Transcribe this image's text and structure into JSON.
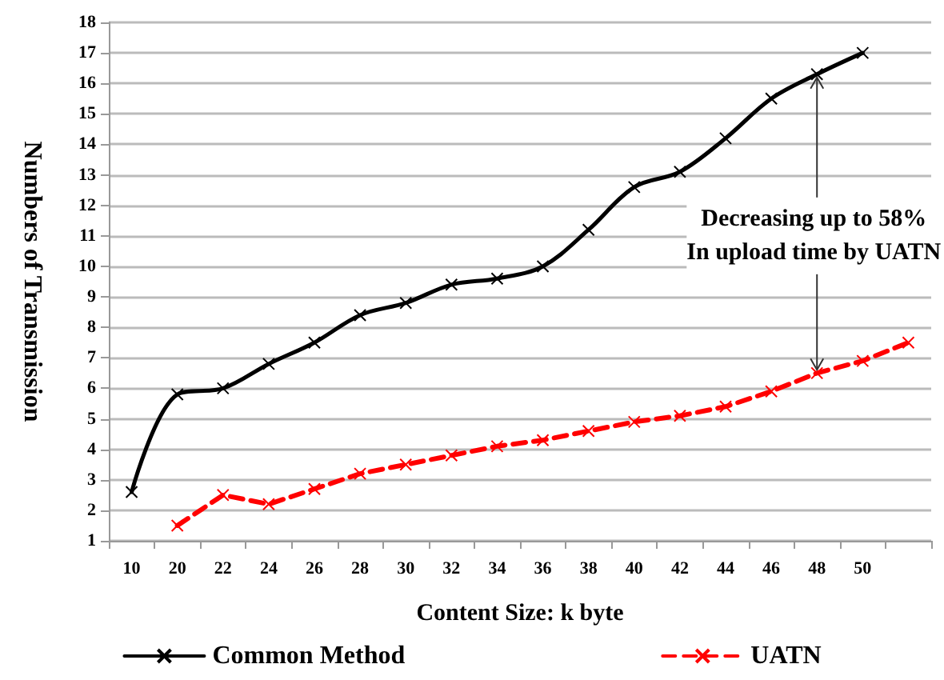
{
  "chart_data": {
    "type": "line",
    "xlabel": "Content Size: k byte",
    "ylabel": "Numbers of Transmission",
    "categories": [
      "10",
      "20",
      "22",
      "24",
      "26",
      "28",
      "30",
      "32",
      "34",
      "36",
      "38",
      "40",
      "42",
      "44",
      "46",
      "48",
      "50",
      null
    ],
    "series": [
      {
        "name": "Common Method",
        "color": "#000000",
        "line_style": "solid",
        "values": [
          2.6,
          5.8,
          6.0,
          6.8,
          7.5,
          8.4,
          8.8,
          9.4,
          9.6,
          10.0,
          11.2,
          12.6,
          13.1,
          14.2,
          15.5,
          16.3,
          17.0,
          null
        ]
      },
      {
        "name": "UATN",
        "color": "#ff0000",
        "line_style": "dashed",
        "values": [
          null,
          1.5,
          2.5,
          2.2,
          2.7,
          3.2,
          3.5,
          3.8,
          4.1,
          4.3,
          4.6,
          4.9,
          5.1,
          5.4,
          5.9,
          6.5,
          6.9,
          7.5
        ]
      }
    ],
    "ylim": [
      1,
      18
    ],
    "yticks": [
      1,
      2,
      3,
      4,
      5,
      6,
      7,
      8,
      9,
      10,
      11,
      12,
      13,
      14,
      15,
      16,
      17,
      18
    ],
    "grid": "y",
    "legend": "bottom",
    "marker": "cross",
    "annotations": [
      {
        "text": "Decreasing up to 58%\nIn upload time by UATN",
        "x": "48",
        "y": 16.3
      }
    ]
  }
}
